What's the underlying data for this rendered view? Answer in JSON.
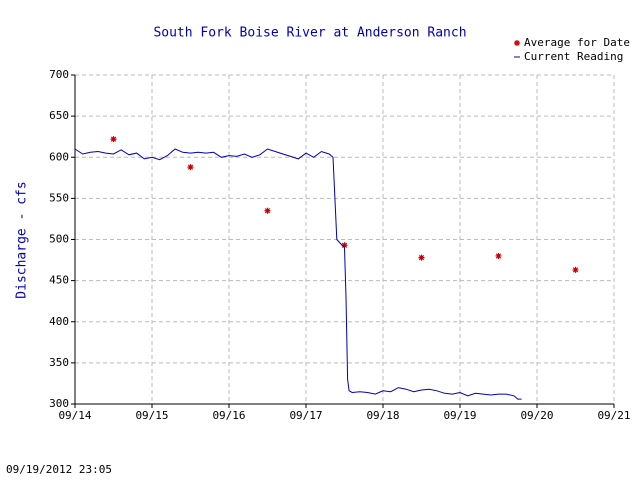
{
  "chart_data": {
    "type": "line",
    "title": "South Fork Boise River at Anderson Ranch",
    "y_label": "Discharge - cfs",
    "footer": "09/19/2012 23:05",
    "xlim": [
      14,
      21
    ],
    "xticks": [
      {
        "value": 14,
        "label": "09/14"
      },
      {
        "value": 15,
        "label": "09/15"
      },
      {
        "value": 16,
        "label": "09/16"
      },
      {
        "value": 17,
        "label": "09/17"
      },
      {
        "value": 18,
        "label": "09/18"
      },
      {
        "value": 19,
        "label": "09/19"
      },
      {
        "value": 20,
        "label": "09/20"
      },
      {
        "value": 21,
        "label": "09/21"
      }
    ],
    "ylim": [
      300,
      700
    ],
    "yticks": [
      300,
      350,
      400,
      450,
      500,
      550,
      600,
      650,
      700
    ],
    "grid": true,
    "legend": "top-right",
    "series": [
      {
        "name": "Average for Date",
        "color": "#cc0000",
        "mode": "markers",
        "x": [
          14.5,
          15.5,
          16.5,
          17.5,
          18.5,
          19.5,
          20.5
        ],
        "values": [
          622,
          588,
          535,
          493,
          478,
          480,
          463
        ]
      },
      {
        "name": "Current Reading",
        "color": "#0000bb",
        "mode": "line",
        "x": [
          14.0,
          14.1,
          14.2,
          14.3,
          14.4,
          14.5,
          14.6,
          14.7,
          14.8,
          14.9,
          15.0,
          15.1,
          15.2,
          15.3,
          15.4,
          15.5,
          15.6,
          15.7,
          15.8,
          15.9,
          16.0,
          16.1,
          16.2,
          16.3,
          16.4,
          16.5,
          16.6,
          16.7,
          16.8,
          16.9,
          17.0,
          17.1,
          17.2,
          17.3,
          17.35,
          17.38,
          17.4,
          17.45,
          17.5,
          17.52,
          17.54,
          17.56,
          17.6,
          17.7,
          17.8,
          17.9,
          18.0,
          18.1,
          18.2,
          18.3,
          18.4,
          18.5,
          18.6,
          18.7,
          18.8,
          18.9,
          19.0,
          19.1,
          19.2,
          19.3,
          19.4,
          19.5,
          19.6,
          19.7,
          19.75,
          19.8
        ],
        "values": [
          610,
          604,
          606,
          607,
          605,
          604,
          609,
          603,
          605,
          598,
          600,
          597,
          602,
          610,
          606,
          605,
          606,
          605,
          606,
          600,
          602,
          601,
          604,
          600,
          603,
          610,
          607,
          604,
          601,
          598,
          605,
          600,
          607,
          604,
          600,
          540,
          500,
          495,
          490,
          430,
          330,
          316,
          314,
          315,
          314,
          312,
          316,
          315,
          320,
          318,
          315,
          317,
          318,
          316,
          313,
          312,
          314,
          310,
          313,
          312,
          311,
          312,
          312,
          310,
          306,
          306
        ]
      }
    ]
  }
}
